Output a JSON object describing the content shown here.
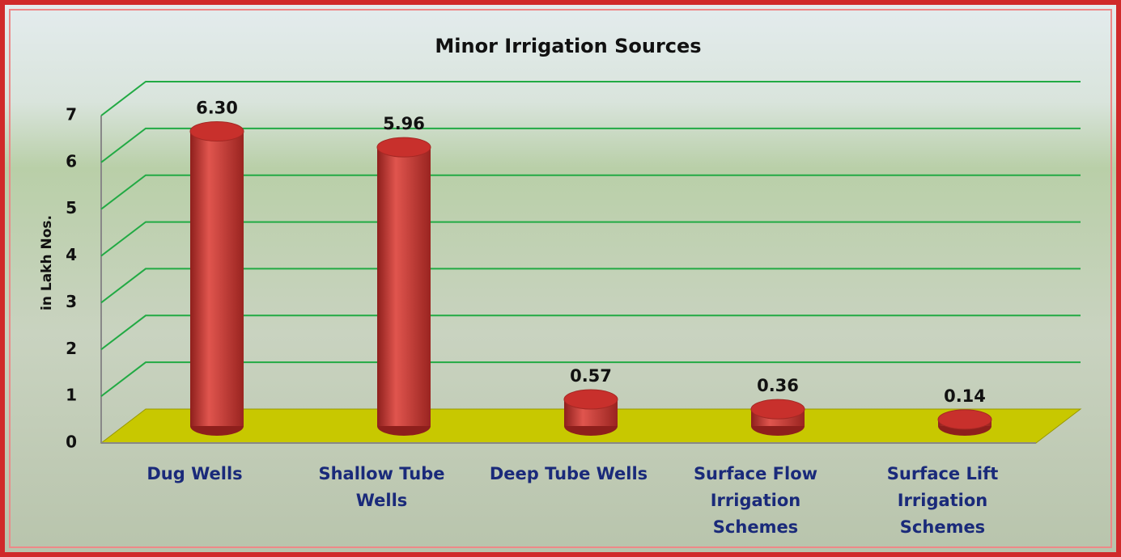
{
  "chart_data": {
    "type": "bar",
    "title": "Minor Irrigation Sources",
    "y_label": "in Lakh Nos.",
    "categories": [
      "Dug Wells",
      "Shallow Tube Wells",
      "Deep Tube Wells",
      "Surface Flow Irrigation Schemes",
      "Surface Lift Irrigation Schemes"
    ],
    "values": [
      6.3,
      5.96,
      0.57,
      0.36,
      0.14
    ],
    "value_labels": [
      "6.30",
      "5.96",
      "0.57",
      "0.36",
      "0.14"
    ],
    "color": "#c8302c",
    "ylim": [
      0,
      7
    ],
    "yticks": [
      0,
      1,
      2,
      3,
      4,
      5,
      6,
      7
    ],
    "grid": true
  }
}
